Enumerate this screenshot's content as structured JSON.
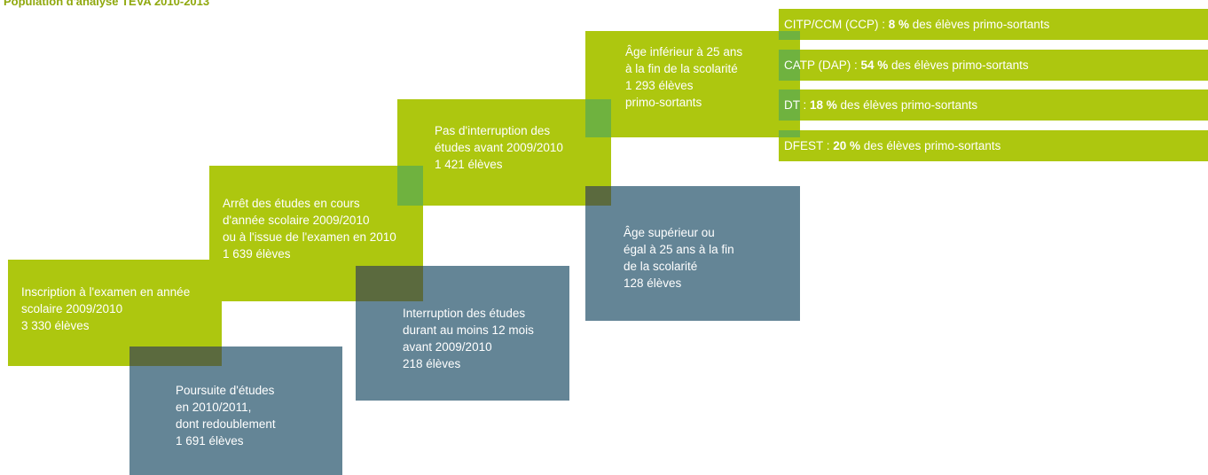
{
  "title": "Population d'analyse TEVA 2010-2013",
  "boxes": [
    {
      "lines": [
        "Inscription à l'examen en année",
        "scolaire 2009/2010"
      ],
      "count": "3 330 élèves"
    },
    {
      "lines": [
        "Poursuite d'études",
        "en 2010/2011,",
        "dont redoublement"
      ],
      "count": "1 691 élèves"
    },
    {
      "lines": [
        "Arrêt des études en cours",
        "d'année scolaire 2009/2010",
        "ou à l'issue de l'examen en 2010"
      ],
      "count": "1 639 élèves"
    },
    {
      "lines": [
        "Interruption des études",
        "durant au moins 12 mois",
        "avant 2009/2010"
      ],
      "count": "218 élèves"
    },
    {
      "lines": [
        "Pas d'interruption des",
        "études avant 2009/2010"
      ],
      "count": "1 421 élèves"
    },
    {
      "lines": [
        "Âge supérieur ou",
        "égal à  25 ans à la fin",
        "de la scolarité"
      ],
      "count": "128 élèves"
    },
    {
      "lines": [
        "Âge inférieur à 25 ans",
        "à la fin de la scolarité",
        "1 293 élèves"
      ],
      "count": "primo-sortants"
    }
  ],
  "strips": [
    {
      "label": "CITP/CCM (CCP) : ",
      "value": "8 %",
      "suffix": " des élèves primo-sortants"
    },
    {
      "label": "CATP (DAP) :  ",
      "value": "54 %",
      "suffix": " des élèves primo-sortants"
    },
    {
      "label": "DT : ",
      "value": "18 %",
      "suffix": " des élèves primo-sortants"
    },
    {
      "label": "DFEST : ",
      "value": "20 %",
      "suffix": " des élèves primo-sortants"
    }
  ]
}
